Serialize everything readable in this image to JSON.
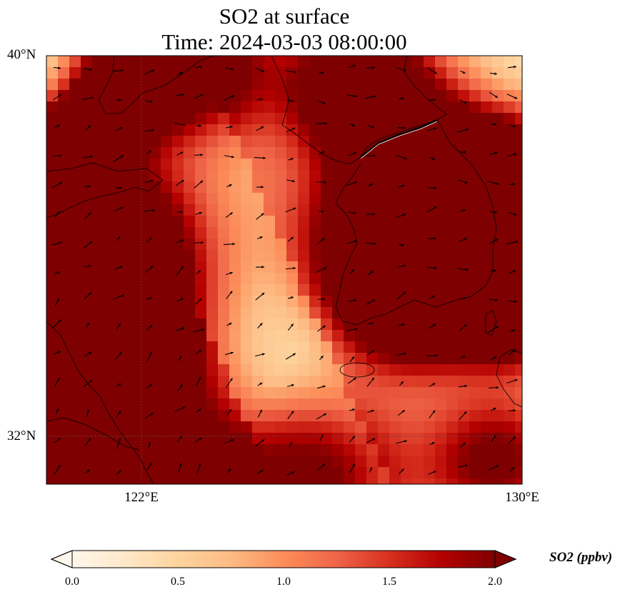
{
  "title": {
    "line1": "SO2 at surface",
    "line2": "Time: 2024-03-03 08:00:00"
  },
  "map": {
    "lat_labels": [
      {
        "value": 40,
        "label": "40°N"
      },
      {
        "value": 32,
        "label": "32°N"
      }
    ],
    "lon_labels": [
      {
        "value": 122,
        "label": "122°E"
      },
      {
        "value": 130,
        "label": "130°E"
      }
    ],
    "extent": {
      "lon_min": 120,
      "lon_max": 130,
      "lat_min": 31,
      "lat_max": 40
    },
    "gridlines": "dotted",
    "field": "SO2 concentration (ppbv)",
    "overlay": "wind vectors"
  },
  "colorbar": {
    "label": "SO2 (ppbv)",
    "ticks": [
      "0.0",
      "0.5",
      "1.0",
      "1.5",
      "2.0"
    ],
    "min": 0,
    "max": 2,
    "extend": "both",
    "colormap": [
      "#fff7ec",
      "#fee8c8",
      "#fdd49e",
      "#fdbb84",
      "#fc8d59",
      "#ef6548",
      "#d7301f",
      "#b30000",
      "#7f0000"
    ]
  }
}
